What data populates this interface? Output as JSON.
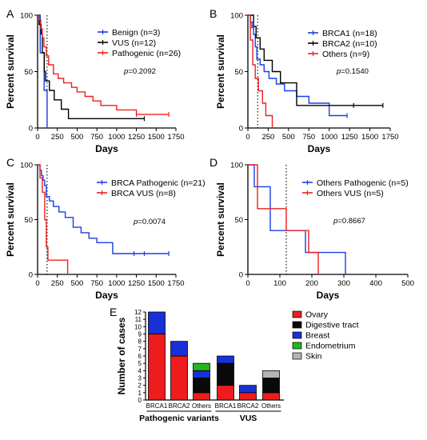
{
  "chart_data": [
    {
      "panel": "A",
      "type": "line",
      "xlabel": "Days",
      "ylabel": "Percent survival",
      "xlim": [
        0,
        1750
      ],
      "ylim": [
        0,
        100
      ],
      "xticks": [
        0,
        250,
        500,
        750,
        1000,
        1250,
        1500,
        1750
      ],
      "yticks": [
        0,
        50,
        100
      ],
      "reference_line_x": 120,
      "pvalue": "p=0.2092",
      "series": [
        {
          "name": "Benign (n=3)",
          "color": "#1a3fe0",
          "x": [
            0,
            33,
            33,
            83,
            83,
            120,
            120
          ],
          "y": [
            100,
            100,
            66.7,
            66.7,
            33.3,
            33.3,
            0
          ],
          "censored": []
        },
        {
          "name": "VUS (n=12)",
          "color": "#000000",
          "x": [
            0,
            20,
            20,
            45,
            45,
            60,
            60,
            85,
            85,
            100,
            100,
            150,
            150,
            210,
            210,
            300,
            300,
            390,
            390,
            1350
          ],
          "y": [
            100,
            100,
            91.7,
            91.7,
            83.3,
            83.3,
            66.7,
            66.7,
            50,
            50,
            41.7,
            41.7,
            33.3,
            33.3,
            25,
            25,
            16.7,
            16.7,
            8.3,
            8.3
          ],
          "censored": [
            [
              1350,
              8.3
            ]
          ]
        },
        {
          "name": "Pathogenic (n=26)",
          "color": "#ee2020",
          "x": [
            0,
            20,
            20,
            40,
            40,
            60,
            60,
            80,
            80,
            110,
            110,
            140,
            140,
            200,
            200,
            260,
            260,
            330,
            330,
            430,
            430,
            500,
            500,
            600,
            600,
            700,
            700,
            800,
            800,
            1000,
            1000,
            1250,
            1250,
            1660
          ],
          "y": [
            100,
            100,
            96,
            96,
            88,
            88,
            80,
            80,
            72,
            72,
            64,
            64,
            56,
            56,
            48,
            48,
            44,
            44,
            40,
            40,
            36,
            36,
            32,
            32,
            28,
            28,
            24,
            24,
            20,
            20,
            16,
            16,
            12,
            12
          ],
          "censored": [
            [
              1250,
              12
            ],
            [
              1660,
              12
            ]
          ]
        }
      ]
    },
    {
      "panel": "B",
      "type": "line",
      "xlabel": "Days",
      "ylabel": "Percent survival",
      "xlim": [
        0,
        1750
      ],
      "ylim": [
        0,
        100
      ],
      "xticks": [
        0,
        250,
        500,
        750,
        1000,
        1250,
        1500,
        1750
      ],
      "yticks": [
        0,
        50,
        100
      ],
      "reference_line_x": 120,
      "pvalue": "p=0.1540",
      "series": [
        {
          "name": "BRCA1 (n=18)",
          "color": "#1a3fe0",
          "x": [
            0,
            30,
            30,
            50,
            50,
            70,
            70,
            90,
            90,
            110,
            110,
            150,
            150,
            200,
            200,
            260,
            260,
            350,
            350,
            450,
            450,
            600,
            600,
            750,
            750,
            1000,
            1000,
            1220
          ],
          "y": [
            100,
            100,
            94,
            94,
            89,
            89,
            83,
            83,
            72,
            72,
            61,
            61,
            56,
            56,
            50,
            50,
            44,
            44,
            39,
            39,
            33,
            33,
            28,
            28,
            22,
            22,
            11,
            11
          ],
          "censored": [
            [
              1220,
              11
            ]
          ]
        },
        {
          "name": "BRCA2 (n=10)",
          "color": "#000000",
          "x": [
            0,
            70,
            70,
            100,
            100,
            150,
            150,
            200,
            200,
            300,
            300,
            400,
            400,
            600,
            600,
            1660
          ],
          "y": [
            100,
            100,
            90,
            90,
            80,
            80,
            70,
            70,
            60,
            60,
            50,
            50,
            40,
            40,
            20,
            20
          ],
          "censored": [
            [
              1300,
              20
            ],
            [
              1660,
              20
            ]
          ]
        },
        {
          "name": "Others (n=9)",
          "color": "#ee2020",
          "x": [
            0,
            30,
            30,
            60,
            60,
            90,
            90,
            130,
            130,
            180,
            180,
            220,
            220,
            300,
            300
          ],
          "y": [
            100,
            100,
            78,
            78,
            56,
            56,
            44,
            44,
            33,
            33,
            22,
            22,
            11,
            11,
            0
          ],
          "censored": []
        }
      ]
    },
    {
      "panel": "C",
      "type": "line",
      "xlabel": "Days",
      "ylabel": "Percent survival",
      "xlim": [
        0,
        1750
      ],
      "ylim": [
        0,
        100
      ],
      "xticks": [
        0,
        250,
        500,
        750,
        1000,
        1250,
        1500,
        1750
      ],
      "yticks": [
        0,
        50,
        100
      ],
      "reference_line_x": 120,
      "pvalue": "p=0.0074",
      "series": [
        {
          "name": "BRCA Pathogenic (n=21)",
          "color": "#1a3fe0",
          "x": [
            0,
            30,
            30,
            50,
            50,
            70,
            70,
            90,
            90,
            110,
            110,
            150,
            150,
            200,
            200,
            270,
            270,
            350,
            350,
            450,
            450,
            550,
            550,
            650,
            650,
            750,
            750,
            950,
            950,
            1660
          ],
          "y": [
            100,
            100,
            95,
            95,
            90,
            90,
            86,
            86,
            81,
            81,
            71,
            71,
            67,
            67,
            62,
            62,
            57,
            57,
            52,
            52,
            43,
            43,
            38,
            38,
            33,
            33,
            29,
            29,
            19,
            19
          ],
          "censored": [
            [
              1220,
              19
            ],
            [
              1350,
              19
            ],
            [
              1660,
              19
            ]
          ]
        },
        {
          "name": "BRCA VUS (n=8)",
          "color": "#ee2020",
          "x": [
            0,
            30,
            30,
            60,
            60,
            90,
            90,
            110,
            110,
            130,
            130,
            380,
            380
          ],
          "y": [
            100,
            100,
            88,
            88,
            75,
            75,
            50,
            50,
            25,
            25,
            13,
            13,
            0
          ],
          "censored": []
        }
      ]
    },
    {
      "panel": "D",
      "type": "line",
      "xlabel": "Days",
      "ylabel": "Percent survival",
      "xlim": [
        0,
        500
      ],
      "ylim": [
        0,
        100
      ],
      "xticks": [
        0,
        100,
        200,
        300,
        400,
        500
      ],
      "yticks": [
        0,
        50,
        100
      ],
      "reference_line_x": 120,
      "pvalue": "p=0.8667",
      "series": [
        {
          "name": "Others Pathogenic (n=5)",
          "color": "#1a3fe0",
          "x": [
            0,
            20,
            20,
            70,
            70,
            180,
            180,
            210,
            210,
            305,
            305
          ],
          "y": [
            100,
            100,
            80,
            80,
            40,
            40,
            20,
            20,
            20,
            20,
            0
          ],
          "censored": []
        },
        {
          "name": "Others VUS (n=5)",
          "color": "#ee2020",
          "x": [
            0,
            30,
            30,
            120,
            120,
            190,
            190,
            220,
            220
          ],
          "y": [
            100,
            100,
            60,
            60,
            40,
            40,
            20,
            20,
            0
          ],
          "censored": []
        }
      ]
    },
    {
      "panel": "E",
      "type": "bar",
      "stacked": true,
      "ylabel": "Number of cases",
      "ylim": [
        0,
        12
      ],
      "yticks": [
        0,
        1,
        2,
        3,
        4,
        5,
        6,
        7,
        8,
        9,
        10,
        11,
        12
      ],
      "categories": [
        "BRCA1",
        "BRCA2",
        "Others",
        "BRCA1",
        "BRCA2",
        "Others"
      ],
      "groups": [
        {
          "label": "Pathogenic variants",
          "indices": [
            0,
            1,
            2
          ]
        },
        {
          "label": "VUS",
          "indices": [
            3,
            4,
            5
          ]
        }
      ],
      "series": [
        {
          "name": "Ovary",
          "color": "#ee1c1c",
          "values": [
            9,
            6,
            1,
            2,
            1,
            1
          ]
        },
        {
          "name": "Digestive tract",
          "color": "#0a0a0a",
          "values": [
            0,
            0,
            2,
            3,
            0,
            2
          ]
        },
        {
          "name": "Breast",
          "color": "#1830d8",
          "values": [
            3,
            2,
            1,
            1,
            1,
            0
          ]
        },
        {
          "name": "Endometrium",
          "color": "#22b422",
          "values": [
            0,
            0,
            1,
            0,
            0,
            0
          ]
        },
        {
          "name": "Skin",
          "color": "#b4b4b4",
          "values": [
            0,
            0,
            0,
            0,
            0,
            1
          ]
        }
      ]
    }
  ]
}
